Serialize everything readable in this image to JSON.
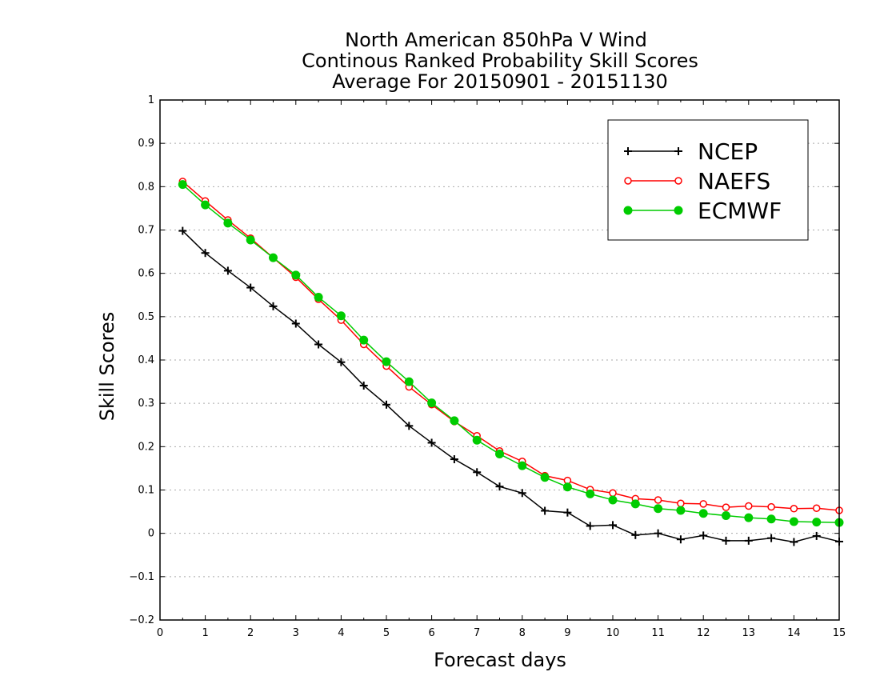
{
  "chart_data": {
    "type": "line",
    "title": [
      "North American 850hPa V Wind",
      "Continous Ranked Probability Skill Scores",
      "Average For 20150901 - 20151130"
    ],
    "xlabel": "Forecast days",
    "ylabel": "Skill Scores",
    "xlim": [
      0,
      15
    ],
    "ylim": [
      -0.2,
      1
    ],
    "xticks": [
      "0",
      "1",
      "2",
      "3",
      "4",
      "5",
      "6",
      "7",
      "8",
      "9",
      "10",
      "11",
      "12",
      "13",
      "14",
      "15"
    ],
    "yticks": [
      "−0.2",
      "−0.1",
      "0",
      "0.1",
      "0.2",
      "0.3",
      "0.4",
      "0.5",
      "0.6",
      "0.7",
      "0.8",
      "0.9",
      "1"
    ],
    "grid": "horizontal dotted",
    "legend_position": "top-right",
    "x": [
      0.5,
      1,
      1.5,
      2,
      2.5,
      3,
      3.5,
      4,
      4.5,
      5,
      5.5,
      6,
      6.5,
      7,
      7.5,
      8,
      8.5,
      9,
      9.5,
      10,
      10.5,
      11,
      11.5,
      12,
      12.5,
      13,
      13.5,
      14,
      14.5,
      15
    ],
    "series": [
      {
        "name": "NCEP",
        "color": "#000000",
        "marker": "plus",
        "values": [
          0.698,
          0.647,
          0.606,
          0.567,
          0.524,
          0.484,
          0.436,
          0.395,
          0.341,
          0.297,
          0.248,
          0.209,
          0.171,
          0.141,
          0.108,
          0.093,
          0.052,
          0.048,
          0.017,
          0.019,
          -0.004,
          0.0,
          -0.014,
          -0.005,
          -0.017,
          -0.017,
          -0.011,
          -0.02,
          -0.006,
          -0.019
        ]
      },
      {
        "name": "NAEFS",
        "color": "#ff0000",
        "marker": "open-circle",
        "values": [
          0.812,
          0.767,
          0.723,
          0.681,
          0.636,
          0.591,
          0.54,
          0.492,
          0.436,
          0.386,
          0.338,
          0.297,
          0.258,
          0.225,
          0.19,
          0.166,
          0.133,
          0.122,
          0.101,
          0.093,
          0.08,
          0.077,
          0.069,
          0.068,
          0.06,
          0.063,
          0.061,
          0.057,
          0.058,
          0.053
        ]
      },
      {
        "name": "ECMWF",
        "color": "#00cc00",
        "marker": "filled-circle",
        "values": [
          0.805,
          0.758,
          0.716,
          0.677,
          0.636,
          0.596,
          0.545,
          0.502,
          0.446,
          0.396,
          0.35,
          0.301,
          0.26,
          0.215,
          0.183,
          0.156,
          0.129,
          0.107,
          0.091,
          0.077,
          0.068,
          0.057,
          0.053,
          0.046,
          0.041,
          0.036,
          0.033,
          0.027,
          0.026,
          0.025
        ]
      }
    ]
  }
}
